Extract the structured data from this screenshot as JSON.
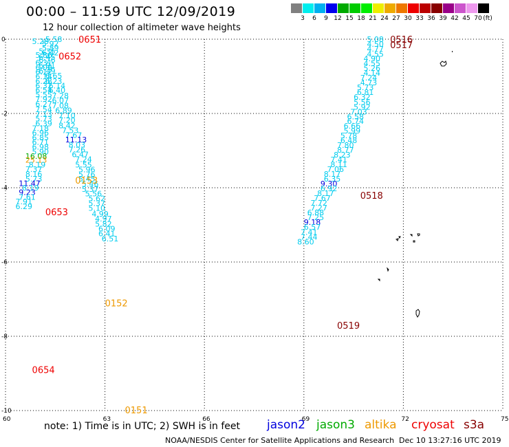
{
  "header": {
    "title": "00:00 – 11:59 UTC 12/09/2019",
    "subtitle": "12 hour collection of altimeter wave heights"
  },
  "legend": {
    "colors": [
      "#808080",
      "#00eeee",
      "#00b0f0",
      "#0000ee",
      "#00aa00",
      "#00cc00",
      "#00ee00",
      "#eeee00",
      "#eeaa00",
      "#ee7700",
      "#ee0000",
      "#bb0000",
      "#880000",
      "#990088",
      "#cc55cc",
      "#ee99ee",
      "#000000"
    ],
    "labels": [
      "3",
      "6",
      "9",
      "12",
      "15",
      "18",
      "21",
      "24",
      "27",
      "30",
      "33",
      "36",
      "39",
      "42",
      "45",
      "70"
    ],
    "unit": "(ft)"
  },
  "map": {
    "x_ticks": [
      "60",
      "63",
      "66",
      "69",
      "72",
      "75"
    ],
    "x_tick_values": [
      60,
      63,
      66,
      69,
      72,
      75
    ],
    "y_ticks": [
      "0",
      "-2",
      "-4",
      "-6",
      "-8",
      "-10"
    ],
    "y_tick_values": [
      0,
      -2,
      -4,
      -6,
      -8,
      -10
    ],
    "lon_range": [
      60,
      75
    ],
    "lat_range": [
      -10,
      0
    ],
    "colors": {
      "cyan": "#00ccee",
      "blue": "#0000dd",
      "green": "#00aa00",
      "orange": "#ee9900",
      "red": "#ee0000",
      "darkred": "#880000"
    },
    "time_labels": [
      {
        "text": "0651",
        "lon": 62.2,
        "lat": 0.0,
        "color": "red"
      },
      {
        "text": "0652",
        "lon": 61.6,
        "lat": -0.45,
        "color": "red"
      },
      {
        "text": "0153",
        "lon": 62.1,
        "lat": -3.8,
        "color": "orange"
      },
      {
        "text": "0653",
        "lon": 61.2,
        "lat": -4.65,
        "color": "red"
      },
      {
        "text": "0152",
        "lon": 63.0,
        "lat": -7.1,
        "color": "orange"
      },
      {
        "text": "0654",
        "lon": 60.8,
        "lat": -8.9,
        "color": "red"
      },
      {
        "text": "0151",
        "lon": 63.6,
        "lat": -9.98,
        "color": "orange"
      },
      {
        "text": "0516",
        "lon": 71.6,
        "lat": 0.0,
        "color": "darkred"
      },
      {
        "text": "0517",
        "lon": 71.6,
        "lat": -0.15,
        "color": "darkred"
      },
      {
        "text": "0518",
        "lon": 70.7,
        "lat": -4.2,
        "color": "darkred"
      },
      {
        "text": "0519",
        "lon": 70.0,
        "lat": -7.7,
        "color": "darkred"
      }
    ],
    "tracks": [
      {
        "name": "jason3-descending-west",
        "points": [
          {
            "v": "5.58",
            "lon": 61.2,
            "lat": 0.0,
            "c": "cyan"
          },
          {
            "v": "5.28",
            "lon": 60.8,
            "lat": -0.06,
            "c": "cyan"
          },
          {
            "v": "5.92",
            "lon": 61.1,
            "lat": -0.12,
            "c": "cyan"
          },
          {
            "v": "5.89",
            "lon": 61.1,
            "lat": -0.23,
            "c": "cyan"
          },
          {
            "v": "5.35",
            "lon": 61.0,
            "lat": -0.32,
            "c": "cyan"
          },
          {
            "v": "6.42",
            "lon": 61.1,
            "lat": -0.36,
            "c": "cyan"
          },
          {
            "v": "5.86",
            "lon": 60.9,
            "lat": -0.43,
            "c": "cyan"
          },
          {
            "v": "6.45",
            "lon": 61.0,
            "lat": -0.48,
            "c": "cyan"
          },
          {
            "v": "6.76",
            "lon": 61.0,
            "lat": -0.56,
            "c": "cyan"
          },
          {
            "v": "6.31",
            "lon": 60.9,
            "lat": -0.63,
            "c": "cyan"
          },
          {
            "v": "6.91",
            "lon": 61.0,
            "lat": -0.7,
            "c": "cyan"
          },
          {
            "v": "6.09",
            "lon": 60.9,
            "lat": -0.76,
            "c": "cyan"
          },
          {
            "v": "6.49",
            "lon": 61.0,
            "lat": -0.85,
            "c": "cyan"
          },
          {
            "v": "6.12",
            "lon": 60.9,
            "lat": -0.88,
            "c": "cyan"
          },
          {
            "v": "6.65",
            "lon": 61.2,
            "lat": -0.98,
            "c": "cyan"
          },
          {
            "v": "6.14",
            "lon": 60.9,
            "lat": -1.0,
            "c": "cyan"
          },
          {
            "v": "6.28",
            "lon": 60.9,
            "lat": -1.13,
            "c": "cyan"
          },
          {
            "v": "6.23",
            "lon": 61.2,
            "lat": -1.13,
            "c": "cyan"
          },
          {
            "v": "6.32",
            "lon": 60.9,
            "lat": -1.25,
            "c": "cyan"
          },
          {
            "v": "6.14",
            "lon": 61.3,
            "lat": -1.25,
            "c": "cyan"
          },
          {
            "v": "6.54",
            "lon": 60.9,
            "lat": -1.37,
            "c": "cyan"
          },
          {
            "v": "6.40",
            "lon": 61.3,
            "lat": -1.37,
            "c": "cyan"
          },
          {
            "v": "5.55",
            "lon": 60.9,
            "lat": -1.49,
            "c": "cyan"
          },
          {
            "v": "7.28",
            "lon": 61.4,
            "lat": -1.52,
            "c": "cyan"
          },
          {
            "v": "7.92",
            "lon": 60.9,
            "lat": -1.61,
            "c": "cyan"
          },
          {
            "v": "6.07",
            "lon": 61.4,
            "lat": -1.65,
            "c": "cyan"
          },
          {
            "v": "6.27",
            "lon": 60.9,
            "lat": -1.74,
            "c": "cyan"
          },
          {
            "v": "7.08",
            "lon": 61.4,
            "lat": -1.79,
            "c": "cyan"
          },
          {
            "v": "7.54",
            "lon": 60.9,
            "lat": -1.89,
            "c": "cyan"
          },
          {
            "v": "6.89",
            "lon": 61.5,
            "lat": -1.92,
            "c": "cyan"
          },
          {
            "v": "7.13",
            "lon": 60.9,
            "lat": -2.02,
            "c": "cyan"
          },
          {
            "v": "7.10",
            "lon": 61.6,
            "lat": -2.06,
            "c": "cyan"
          },
          {
            "v": "5.73",
            "lon": 60.9,
            "lat": -2.14,
            "c": "cyan"
          },
          {
            "v": "7.20",
            "lon": 61.6,
            "lat": -2.18,
            "c": "cyan"
          },
          {
            "v": "6.39",
            "lon": 60.9,
            "lat": -2.27,
            "c": "cyan"
          },
          {
            "v": "8.42",
            "lon": 61.6,
            "lat": -2.32,
            "c": "cyan"
          },
          {
            "v": "7.18",
            "lon": 60.8,
            "lat": -2.4,
            "c": "cyan"
          },
          {
            "v": "7.53",
            "lon": 61.7,
            "lat": -2.45,
            "c": "cyan"
          },
          {
            "v": "6.96",
            "lon": 60.8,
            "lat": -2.52,
            "c": "cyan"
          },
          {
            "v": "7.67",
            "lon": 61.8,
            "lat": -2.58,
            "c": "cyan"
          },
          {
            "v": "6.85",
            "lon": 60.8,
            "lat": -2.65,
            "c": "cyan"
          },
          {
            "v": "11.13",
            "lon": 61.8,
            "lat": -2.7,
            "c": "blue"
          },
          {
            "v": "6.71",
            "lon": 60.8,
            "lat": -2.77,
            "c": "cyan"
          },
          {
            "v": "8.03",
            "lon": 61.9,
            "lat": -2.84,
            "c": "cyan"
          },
          {
            "v": "6.98",
            "lon": 60.8,
            "lat": -2.9,
            "c": "cyan"
          },
          {
            "v": "7.26",
            "lon": 61.9,
            "lat": -2.97,
            "c": "cyan"
          },
          {
            "v": "5.90",
            "lon": 60.8,
            "lat": -3.03,
            "c": "cyan"
          },
          {
            "v": "6.47",
            "lon": 62.0,
            "lat": -3.1,
            "c": "cyan"
          },
          {
            "v": "16.08",
            "lon": 60.6,
            "lat": -3.15,
            "c": "green"
          },
          {
            "v": "7.24",
            "lon": 62.1,
            "lat": -3.23,
            "c": "cyan"
          },
          {
            "v": "25.13",
            "lon": 60.6,
            "lat": -3.25,
            "c": "orange"
          },
          {
            "v": "8.19",
            "lon": 60.7,
            "lat": -3.38,
            "c": "cyan"
          },
          {
            "v": "5.55",
            "lon": 62.1,
            "lat": -3.38,
            "c": "cyan"
          },
          {
            "v": "7.37",
            "lon": 60.6,
            "lat": -3.5,
            "c": "cyan"
          },
          {
            "v": "5.96",
            "lon": 62.2,
            "lat": -3.51,
            "c": "cyan"
          },
          {
            "v": "8.16",
            "lon": 60.6,
            "lat": -3.63,
            "c": "cyan"
          },
          {
            "v": "5.76",
            "lon": 62.2,
            "lat": -3.64,
            "c": "cyan"
          },
          {
            "v": "5.73",
            "lon": 60.6,
            "lat": -3.76,
            "c": "cyan"
          },
          {
            "v": "5.45",
            "lon": 62.2,
            "lat": -3.76,
            "c": "cyan"
          },
          {
            "v": "11.47",
            "lon": 60.4,
            "lat": -3.88,
            "c": "blue"
          },
          {
            "v": "5.46",
            "lon": 62.3,
            "lat": -3.9,
            "c": "cyan"
          },
          {
            "v": "8.19",
            "lon": 60.5,
            "lat": -4.0,
            "c": "cyan"
          },
          {
            "v": "5.37",
            "lon": 62.3,
            "lat": -4.04,
            "c": "cyan"
          },
          {
            "v": "9.23",
            "lon": 60.4,
            "lat": -4.12,
            "c": "blue"
          },
          {
            "v": "5.56",
            "lon": 62.4,
            "lat": -4.16,
            "c": "cyan"
          },
          {
            "v": "7.61",
            "lon": 60.4,
            "lat": -4.25,
            "c": "cyan"
          },
          {
            "v": "5.62",
            "lon": 62.5,
            "lat": -4.29,
            "c": "cyan"
          },
          {
            "v": "7.91",
            "lon": 60.3,
            "lat": -4.37,
            "c": "cyan"
          },
          {
            "v": "5.37",
            "lon": 62.5,
            "lat": -4.42,
            "c": "cyan"
          },
          {
            "v": "6.29",
            "lon": 60.3,
            "lat": -4.5,
            "c": "cyan"
          },
          {
            "v": "5.10",
            "lon": 62.5,
            "lat": -4.55,
            "c": "cyan"
          },
          {
            "v": "4.99",
            "lon": 62.6,
            "lat": -4.7,
            "c": "cyan"
          },
          {
            "v": "4.97",
            "lon": 62.7,
            "lat": -4.83,
            "c": "cyan"
          },
          {
            "v": "5.82",
            "lon": 62.7,
            "lat": -4.97,
            "c": "cyan"
          },
          {
            "v": "6.09",
            "lon": 62.8,
            "lat": -5.1,
            "c": "cyan"
          },
          {
            "v": "6.41",
            "lon": 62.8,
            "lat": -5.23,
            "c": "cyan"
          },
          {
            "v": "6.51",
            "lon": 62.9,
            "lat": -5.37,
            "c": "cyan"
          }
        ]
      },
      {
        "name": "altika-descending-east",
        "points": [
          {
            "v": "5.08",
            "lon": 70.9,
            "lat": 0.0,
            "c": "cyan"
          },
          {
            "v": "4.50",
            "lon": 70.9,
            "lat": -0.13,
            "c": "cyan"
          },
          {
            "v": "4.77",
            "lon": 70.9,
            "lat": -0.26,
            "c": "cyan"
          },
          {
            "v": "4.55",
            "lon": 70.9,
            "lat": -0.4,
            "c": "cyan"
          },
          {
            "v": "4.90",
            "lon": 70.8,
            "lat": -0.52,
            "c": "cyan"
          },
          {
            "v": "4.55",
            "lon": 70.8,
            "lat": -0.65,
            "c": "cyan"
          },
          {
            "v": "5.26",
            "lon": 70.8,
            "lat": -0.78,
            "c": "cyan"
          },
          {
            "v": "4.14",
            "lon": 70.8,
            "lat": -0.91,
            "c": "cyan"
          },
          {
            "v": "7.24",
            "lon": 70.7,
            "lat": -1.04,
            "c": "cyan"
          },
          {
            "v": "4.73",
            "lon": 70.7,
            "lat": -1.17,
            "c": "cyan"
          },
          {
            "v": "5.73",
            "lon": 70.6,
            "lat": -1.3,
            "c": "cyan"
          },
          {
            "v": "6.81",
            "lon": 70.6,
            "lat": -1.43,
            "c": "cyan"
          },
          {
            "v": "6.32",
            "lon": 70.5,
            "lat": -1.56,
            "c": "cyan"
          },
          {
            "v": "5.56",
            "lon": 70.5,
            "lat": -1.69,
            "c": "cyan"
          },
          {
            "v": "5.92",
            "lon": 70.5,
            "lat": -1.82,
            "c": "cyan"
          },
          {
            "v": "7.03",
            "lon": 70.4,
            "lat": -1.95,
            "c": "cyan"
          },
          {
            "v": "6.58",
            "lon": 70.3,
            "lat": -2.08,
            "c": "cyan"
          },
          {
            "v": "6.74",
            "lon": 70.3,
            "lat": -2.2,
            "c": "cyan"
          },
          {
            "v": "6.66",
            "lon": 70.2,
            "lat": -2.33,
            "c": "cyan"
          },
          {
            "v": "5.99",
            "lon": 70.2,
            "lat": -2.46,
            "c": "cyan"
          },
          {
            "v": "5.78",
            "lon": 70.1,
            "lat": -2.59,
            "c": "cyan"
          },
          {
            "v": "6.48",
            "lon": 70.1,
            "lat": -2.72,
            "c": "cyan"
          },
          {
            "v": "7.80",
            "lon": 70.0,
            "lat": -2.85,
            "c": "cyan"
          },
          {
            "v": "8.77",
            "lon": 70.0,
            "lat": -2.98,
            "c": "cyan"
          },
          {
            "v": "8.23",
            "lon": 69.9,
            "lat": -3.11,
            "c": "cyan"
          },
          {
            "v": "7.41",
            "lon": 69.8,
            "lat": -3.24,
            "c": "cyan"
          },
          {
            "v": "8.11",
            "lon": 69.8,
            "lat": -3.37,
            "c": "cyan"
          },
          {
            "v": "7.06",
            "lon": 69.7,
            "lat": -3.5,
            "c": "cyan"
          },
          {
            "v": "8.17",
            "lon": 69.6,
            "lat": -3.63,
            "c": "cyan"
          },
          {
            "v": "6.35",
            "lon": 69.6,
            "lat": -3.76,
            "c": "cyan"
          },
          {
            "v": "9.30",
            "lon": 69.5,
            "lat": -3.89,
            "c": "blue"
          },
          {
            "v": "6.92",
            "lon": 69.5,
            "lat": -4.02,
            "c": "cyan"
          },
          {
            "v": "8.17",
            "lon": 69.4,
            "lat": -4.15,
            "c": "cyan"
          },
          {
            "v": "7.67",
            "lon": 69.3,
            "lat": -4.28,
            "c": "cyan"
          },
          {
            "v": "7.72",
            "lon": 69.2,
            "lat": -4.41,
            "c": "cyan"
          },
          {
            "v": "7.27",
            "lon": 69.2,
            "lat": -4.54,
            "c": "cyan"
          },
          {
            "v": "6.88",
            "lon": 69.1,
            "lat": -4.67,
            "c": "cyan"
          },
          {
            "v": "7.25",
            "lon": 69.1,
            "lat": -4.8,
            "c": "cyan"
          },
          {
            "v": "9.18",
            "lon": 69.0,
            "lat": -4.93,
            "c": "blue"
          },
          {
            "v": "6.57",
            "lon": 69.0,
            "lat": -5.06,
            "c": "cyan"
          },
          {
            "v": "7.41",
            "lon": 68.9,
            "lat": -5.19,
            "c": "cyan"
          },
          {
            "v": "7.44",
            "lon": 68.9,
            "lat": -5.32,
            "c": "cyan"
          },
          {
            "v": "8.60",
            "lon": 68.8,
            "lat": -5.45,
            "c": "cyan"
          }
        ]
      }
    ]
  },
  "footer": {
    "note": "note:  1) Time is in UTC;  2) SWH is in feet",
    "satellites": [
      {
        "name": "jason2",
        "color": "#0000dd"
      },
      {
        "name": "jason3",
        "color": "#00aa00"
      },
      {
        "name": "altika",
        "color": "#ee9900"
      },
      {
        "name": "cryosat",
        "color": "#ee0000"
      },
      {
        "name": "s3a",
        "color": "#880000"
      }
    ],
    "credit": "NOAA/NESDIS Center for Satellite Applications and Research",
    "timestamp": "Dec 10 13:27:16 UTC 2019"
  }
}
